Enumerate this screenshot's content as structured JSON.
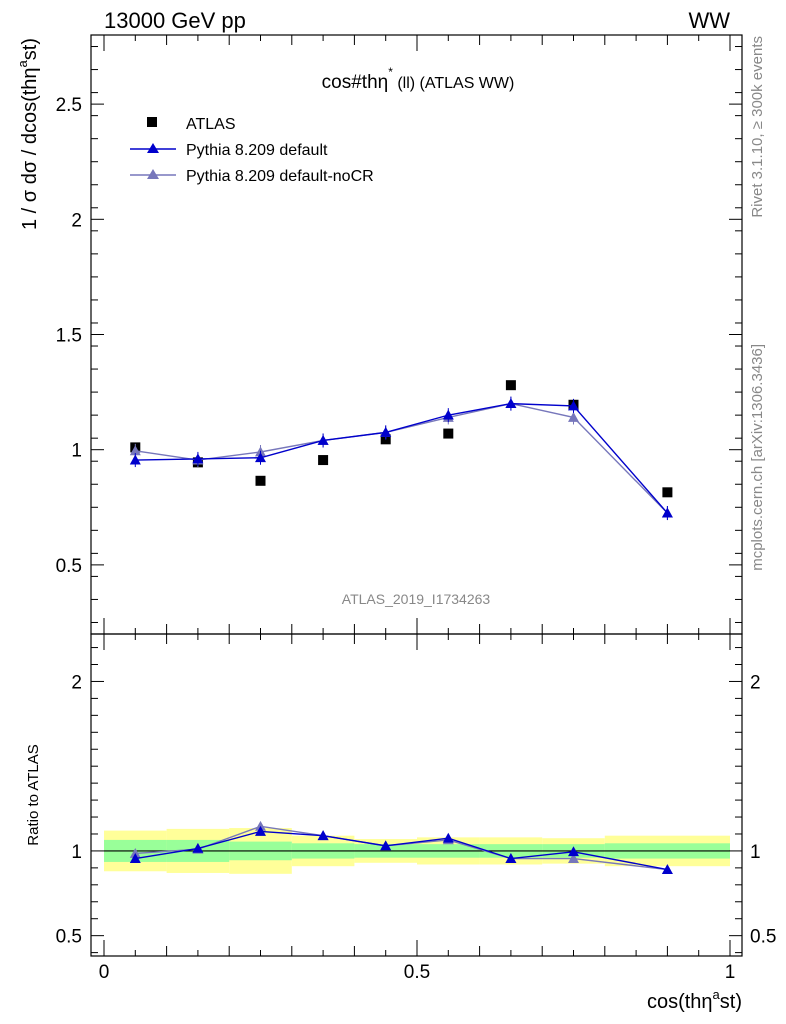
{
  "header": {
    "energy_label": "13000 GeV pp",
    "process_label": "WW"
  },
  "side": {
    "rivet_label": "Rivet 3.1.10, ≥ 300k events",
    "mcplots_label": "mcplots.cern.ch [arXiv:1306.3436]"
  },
  "chart_data": [
    {
      "type": "scatter",
      "title": "cos#thη* (ll) (ATLAS WW)",
      "title_parts": {
        "main": "cos#thη",
        "sup": "*",
        "rest": " (ll) (ATLAS WW)"
      },
      "ylabel": "1 / σ  dσ / dcos(thη^a st)",
      "ylabel_parts": {
        "main": "1 / σ  dσ / dcos(thη",
        "sup": "a",
        "rest": "st)"
      },
      "watermark": "ATLAS_2019_I1734263",
      "xlim": [
        0,
        1
      ],
      "ylim": [
        0.2,
        2.8
      ],
      "yticks": [
        "0.5",
        "1",
        "1.5",
        "2",
        "2.5"
      ],
      "yticks_values": [
        0.5,
        1,
        1.5,
        2,
        2.5
      ],
      "legend_position": "top-left",
      "bins": [
        [
          0.0,
          0.1
        ],
        [
          0.1,
          0.2
        ],
        [
          0.2,
          0.3
        ],
        [
          0.3,
          0.4
        ],
        [
          0.4,
          0.5
        ],
        [
          0.5,
          0.6
        ],
        [
          0.6,
          0.7
        ],
        [
          0.7,
          0.8
        ],
        [
          0.8,
          1.0
        ]
      ],
      "x": [
        0.05,
        0.15,
        0.25,
        0.35,
        0.45,
        0.55,
        0.65,
        0.75,
        0.9
      ],
      "series": [
        {
          "name": "ATLAS",
          "marker": "square",
          "color": "#000000",
          "values": [
            1.01,
            0.945,
            0.865,
            0.955,
            1.045,
            1.07,
            1.28,
            1.195,
            0.815
          ]
        },
        {
          "name": "Pythia 8.209 default",
          "marker": "triangle",
          "color": "#0000cc",
          "values": [
            0.955,
            0.96,
            0.965,
            1.04,
            1.075,
            1.15,
            1.2,
            1.19,
            0.725
          ]
        },
        {
          "name": "Pythia 8.209 default-noCR",
          "marker": "triangle",
          "color": "#7777bb",
          "values": [
            0.995,
            0.955,
            0.99,
            1.04,
            1.075,
            1.14,
            1.2,
            1.14,
            0.725
          ]
        }
      ]
    },
    {
      "type": "scatter",
      "ylabel": "Ratio to ATLAS",
      "xlabel": "cos(thη^a st)",
      "xlabel_parts": {
        "main": "cos(thη",
        "sup": "a",
        "rest": "st)"
      },
      "xlim": [
        0,
        1
      ],
      "ylim": [
        0.38,
        2.28
      ],
      "xticks": [
        "0",
        "0.5",
        "1"
      ],
      "xticks_values": [
        0,
        0.5,
        1
      ],
      "yticks": [
        "0.5",
        "1",
        "2"
      ],
      "yticks_values": [
        0.5,
        1,
        2
      ],
      "reference": 1,
      "bins": [
        [
          0.0,
          0.1
        ],
        [
          0.1,
          0.2
        ],
        [
          0.2,
          0.3
        ],
        [
          0.3,
          0.4
        ],
        [
          0.4,
          0.5
        ],
        [
          0.5,
          0.6
        ],
        [
          0.6,
          0.7
        ],
        [
          0.7,
          0.8
        ],
        [
          0.8,
          1.0
        ]
      ],
      "x": [
        0.05,
        0.15,
        0.25,
        0.35,
        0.45,
        0.55,
        0.65,
        0.75,
        0.9
      ],
      "band_inner": [
        [
          0.935,
          1.065
        ],
        [
          0.935,
          1.065
        ],
        [
          0.945,
          1.055
        ],
        [
          0.955,
          1.045
        ],
        [
          0.96,
          1.04
        ],
        [
          0.96,
          1.04
        ],
        [
          0.96,
          1.04
        ],
        [
          0.96,
          1.04
        ],
        [
          0.955,
          1.045
        ]
      ],
      "band_outer": [
        [
          0.88,
          1.12
        ],
        [
          0.87,
          1.13
        ],
        [
          0.865,
          1.135
        ],
        [
          0.91,
          1.09
        ],
        [
          0.93,
          1.07
        ],
        [
          0.92,
          1.08
        ],
        [
          0.92,
          1.08
        ],
        [
          0.925,
          1.075
        ],
        [
          0.91,
          1.09
        ]
      ],
      "band_colors": {
        "inner": "#99ff99",
        "outer": "#ffff99"
      },
      "series": [
        {
          "name": "Pythia 8.209 default",
          "color": "#0000cc",
          "values": [
            0.955,
            1.015,
            1.115,
            1.09,
            1.03,
            1.075,
            0.955,
            0.995,
            0.89
          ]
        },
        {
          "name": "Pythia 8.209 default-noCR",
          "color": "#7777bb",
          "values": [
            0.985,
            1.01,
            1.145,
            1.09,
            1.03,
            1.065,
            0.955,
            0.955,
            0.89
          ]
        }
      ]
    }
  ]
}
